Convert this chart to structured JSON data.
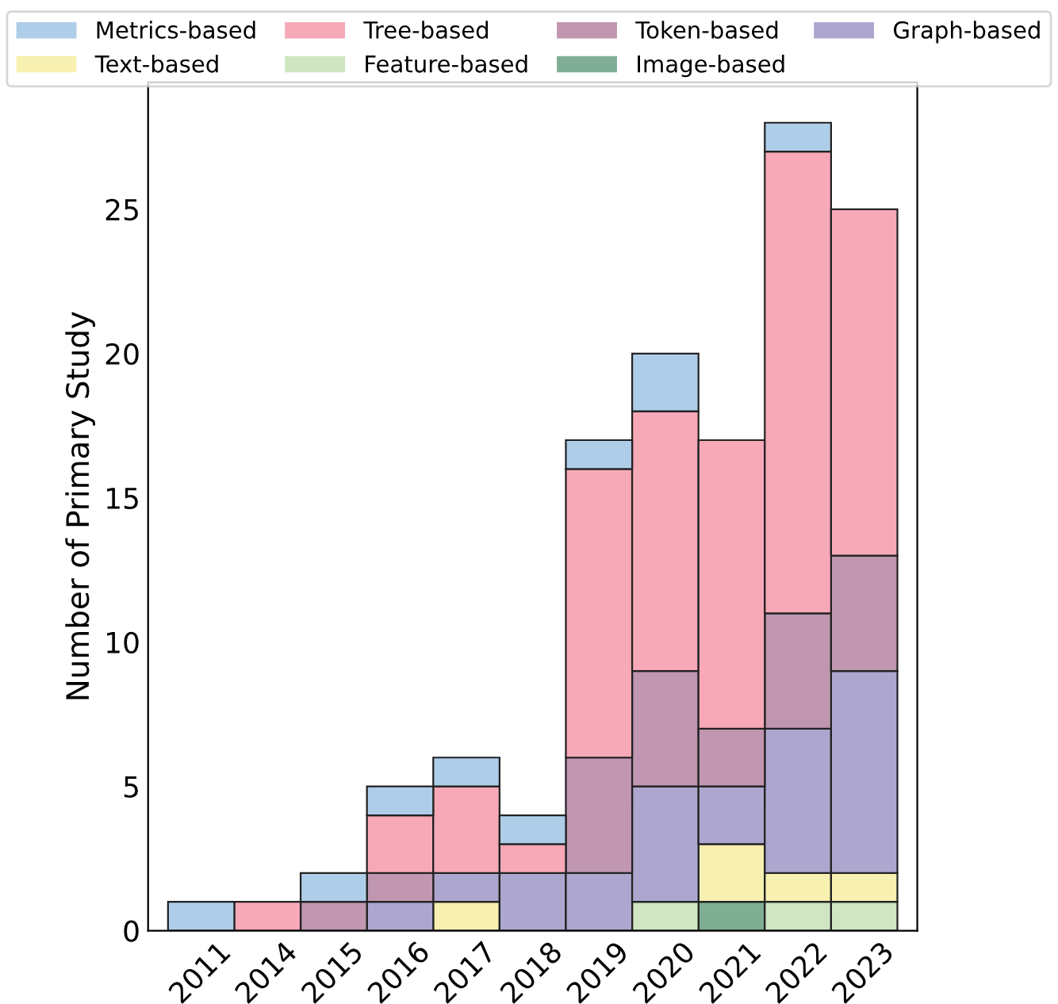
{
  "chart_data": {
    "type": "bar",
    "stacked": true,
    "ylabel": "Number of Primary Study",
    "categories": [
      "2011",
      "2014",
      "2015",
      "2016",
      "2017",
      "2018",
      "2019",
      "2020",
      "2021",
      "2022",
      "2023"
    ],
    "series": [
      {
        "name": "Image-based",
        "color": "#7fae95",
        "values": [
          0,
          0,
          0,
          0,
          0,
          0,
          0,
          0,
          1,
          0,
          0
        ]
      },
      {
        "name": "Feature-based",
        "color": "#d0e6c2",
        "values": [
          0,
          0,
          0,
          0,
          0,
          0,
          0,
          1,
          0,
          1,
          1
        ]
      },
      {
        "name": "Text-based",
        "color": "#f7f0b0",
        "values": [
          0,
          0,
          0,
          0,
          1,
          0,
          0,
          0,
          2,
          1,
          1
        ]
      },
      {
        "name": "Graph-based",
        "color": "#ada7d0",
        "values": [
          0,
          0,
          0,
          1,
          1,
          2,
          2,
          4,
          2,
          5,
          7
        ]
      },
      {
        "name": "Token-based",
        "color": "#c096b0",
        "values": [
          0,
          0,
          1,
          1,
          0,
          0,
          4,
          4,
          2,
          4,
          4
        ]
      },
      {
        "name": "Tree-based",
        "color": "#f7a9b8",
        "values": [
          0,
          1,
          0,
          2,
          3,
          1,
          10,
          9,
          10,
          16,
          12
        ]
      },
      {
        "name": "Metrics-based",
        "color": "#aecde9",
        "values": [
          1,
          0,
          1,
          1,
          1,
          1,
          1,
          2,
          0,
          1,
          0
        ]
      }
    ],
    "ylim": [
      0,
      29.4
    ],
    "yticks": [
      0,
      5,
      10,
      15,
      20,
      25
    ],
    "grid": false,
    "legend": "top"
  }
}
